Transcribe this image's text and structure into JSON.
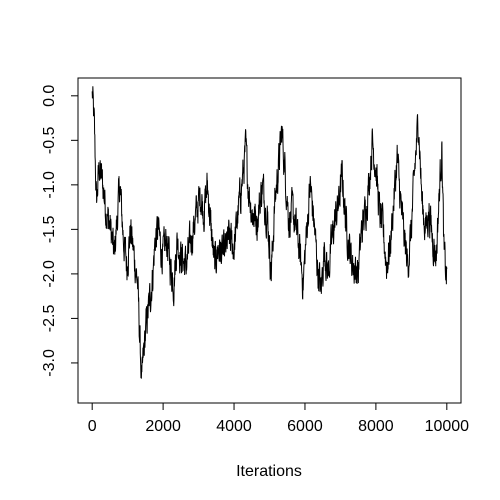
{
  "chart_data": {
    "type": "line",
    "title": "",
    "xlabel": "Iterations",
    "ylabel": "",
    "xlim": [
      -400,
      10400
    ],
    "ylim": [
      -3.45,
      0.2
    ],
    "grid": false,
    "line_color": "#000000",
    "x_ticks": [
      0,
      2000,
      4000,
      6000,
      8000,
      10000
    ],
    "x_tick_labels": [
      "0",
      "2000",
      "4000",
      "6000",
      "8000",
      "10000"
    ],
    "y_ticks": [
      -3.0,
      -2.5,
      -2.0,
      -1.5,
      -1.0,
      -0.5,
      0.0
    ],
    "y_tick_labels": [
      "-3.0",
      "-2.5",
      "-2.0",
      "-1.5",
      "-1.0",
      "-0.5",
      "0.0"
    ],
    "x_range": [
      0,
      10000
    ],
    "knots": [
      [
        0,
        0.05
      ],
      [
        60,
        -0.35
      ],
      [
        120,
        -1.2
      ],
      [
        200,
        -0.8
      ],
      [
        300,
        -1.0
      ],
      [
        400,
        -1.3
      ],
      [
        520,
        -1.5
      ],
      [
        620,
        -1.8
      ],
      [
        700,
        -1.4
      ],
      [
        780,
        -1.0
      ],
      [
        880,
        -1.6
      ],
      [
        980,
        -1.9
      ],
      [
        1080,
        -1.5
      ],
      [
        1180,
        -1.8
      ],
      [
        1280,
        -2.1
      ],
      [
        1340,
        -2.7
      ],
      [
        1400,
        -3.25
      ],
      [
        1450,
        -2.9
      ],
      [
        1520,
        -2.6
      ],
      [
        1620,
        -2.3
      ],
      [
        1700,
        -2.05
      ],
      [
        1780,
        -1.6
      ],
      [
        1860,
        -1.5
      ],
      [
        1940,
        -1.7
      ],
      [
        2000,
        -1.8
      ],
      [
        2100,
        -1.6
      ],
      [
        2200,
        -1.9
      ],
      [
        2300,
        -2.1
      ],
      [
        2400,
        -1.6
      ],
      [
        2500,
        -1.8
      ],
      [
        2650,
        -1.9
      ],
      [
        2750,
        -1.7
      ],
      [
        2850,
        -1.5
      ],
      [
        2950,
        -1.3
      ],
      [
        3050,
        -1.1
      ],
      [
        3150,
        -1.3
      ],
      [
        3250,
        -1.0
      ],
      [
        3350,
        -1.5
      ],
      [
        3450,
        -1.9
      ],
      [
        3550,
        -1.7
      ],
      [
        3700,
        -1.8
      ],
      [
        3850,
        -1.6
      ],
      [
        4000,
        -1.7
      ],
      [
        4150,
        -1.2
      ],
      [
        4250,
        -0.9
      ],
      [
        4330,
        -0.6
      ],
      [
        4400,
        -1.0
      ],
      [
        4500,
        -1.3
      ],
      [
        4650,
        -1.4
      ],
      [
        4800,
        -1.0
      ],
      [
        4950,
        -1.4
      ],
      [
        5050,
        -2.0
      ],
      [
        5150,
        -1.2
      ],
      [
        5250,
        -0.8
      ],
      [
        5350,
        -0.4
      ],
      [
        5450,
        -0.9
      ],
      [
        5550,
        -1.4
      ],
      [
        5650,
        -1.3
      ],
      [
        5800,
        -1.6
      ],
      [
        5950,
        -2.1
      ],
      [
        6050,
        -1.5
      ],
      [
        6150,
        -1.0
      ],
      [
        6250,
        -1.4
      ],
      [
        6350,
        -1.9
      ],
      [
        6450,
        -2.2
      ],
      [
        6550,
        -1.7
      ],
      [
        6650,
        -2.0
      ],
      [
        6800,
        -1.5
      ],
      [
        6950,
        -1.2
      ],
      [
        7050,
        -0.9
      ],
      [
        7150,
        -1.4
      ],
      [
        7250,
        -1.7
      ],
      [
        7350,
        -1.9
      ],
      [
        7500,
        -2.0
      ],
      [
        7600,
        -1.5
      ],
      [
        7700,
        -1.3
      ],
      [
        7800,
        -1.0
      ],
      [
        7900,
        -0.5
      ],
      [
        8000,
        -0.8
      ],
      [
        8100,
        -1.3
      ],
      [
        8200,
        -1.5
      ],
      [
        8300,
        -1.9
      ],
      [
        8400,
        -1.7
      ],
      [
        8500,
        -1.2
      ],
      [
        8600,
        -0.7
      ],
      [
        8700,
        -1.2
      ],
      [
        8800,
        -1.6
      ],
      [
        8900,
        -1.9
      ],
      [
        9000,
        -1.5
      ],
      [
        9100,
        -0.8
      ],
      [
        9200,
        -0.25
      ],
      [
        9300,
        -1.2
      ],
      [
        9400,
        -1.5
      ],
      [
        9500,
        -1.3
      ],
      [
        9600,
        -1.6
      ],
      [
        9700,
        -1.8
      ],
      [
        9800,
        -1.0
      ],
      [
        9860,
        -0.55
      ],
      [
        9920,
        -1.8
      ],
      [
        10000,
        -2.05
      ]
    ],
    "noise_amplitude": 0.17
  }
}
